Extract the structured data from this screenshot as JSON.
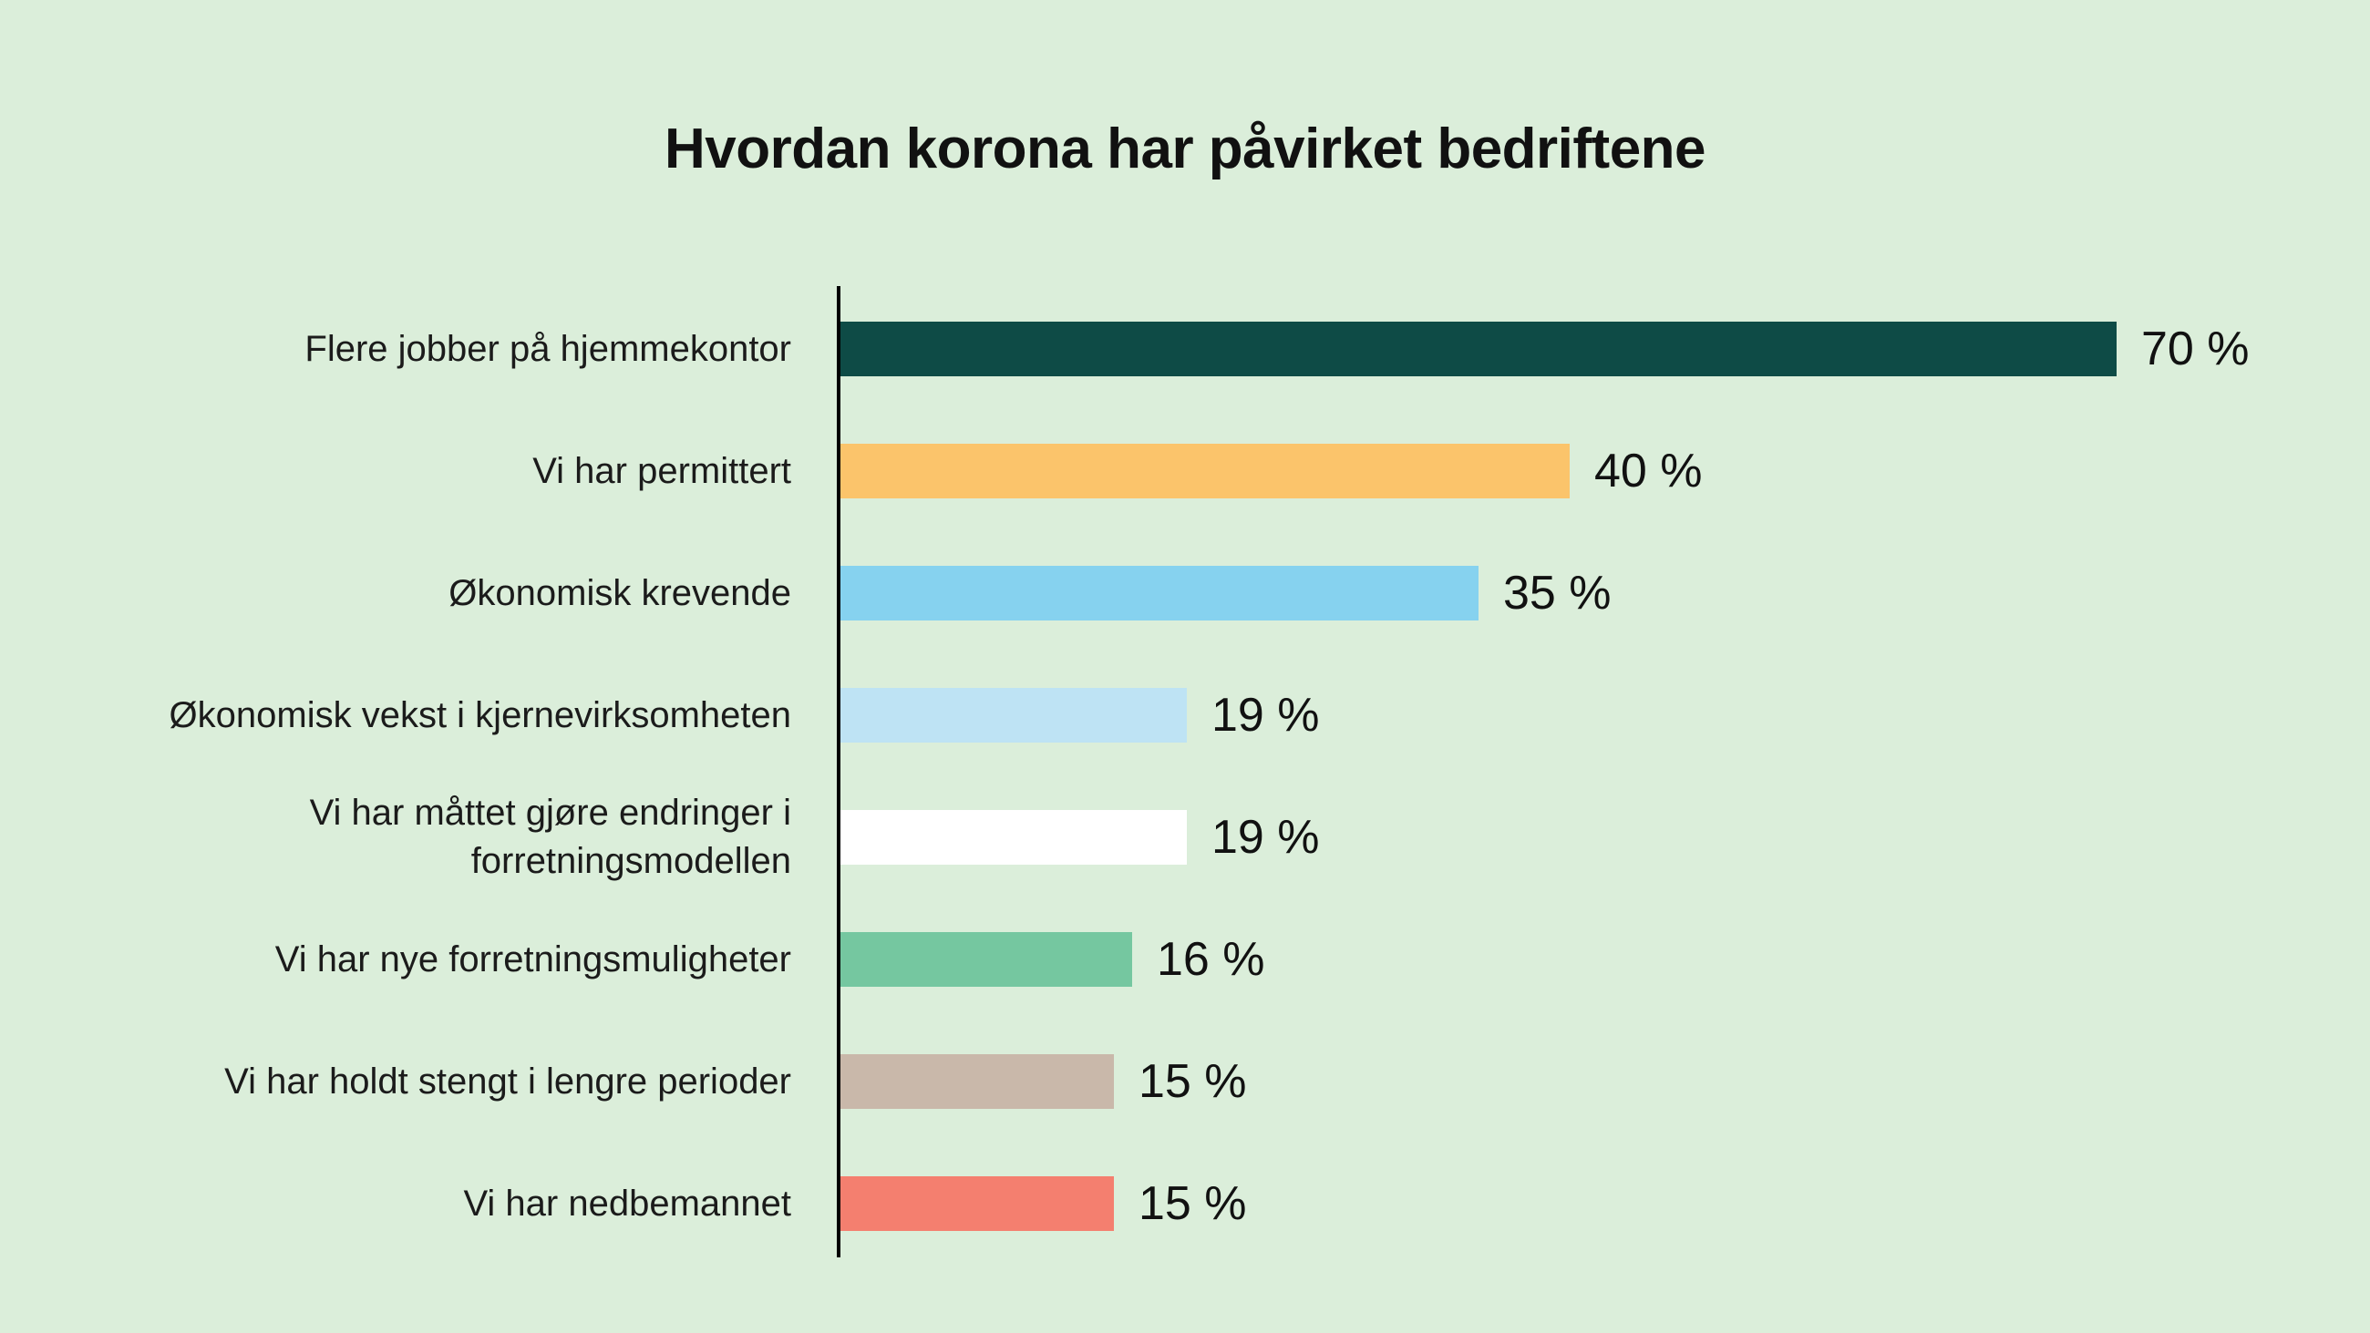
{
  "title": "Hvordan korona har påvirket bedriftene",
  "chart_data": {
    "type": "bar",
    "orientation": "horizontal",
    "title": "Hvordan korona har påvirket bedriftene",
    "categories": [
      "Flere jobber på hjemmekontor",
      "Vi har permittert",
      "Økonomisk krevende",
      "Økonomisk vekst i kjernevirksomheten",
      "Vi har måttet gjøre endringer i forretningsmodellen",
      "Vi har nye forretningsmuligheter",
      "Vi har holdt stengt i lengre perioder",
      "Vi har nedbemannet"
    ],
    "values": [
      70,
      40,
      35,
      19,
      19,
      16,
      15,
      15
    ],
    "value_labels": [
      "70 %",
      "40 %",
      "35 %",
      "19 %",
      "19 %",
      "16 %",
      "15 %",
      "15 %"
    ],
    "unit": "%",
    "bar_colors": [
      "#0e4b46",
      "#fbc46b",
      "#86d2ef",
      "#bee3f4",
      "#ffffff",
      "#75c7a0",
      "#c9b8aa",
      "#f47f6f"
    ],
    "xlim": [
      0,
      72
    ],
    "grid": false,
    "legend": false,
    "background_color": "#dbeeda",
    "axis_color": "#000000",
    "text_color": "#1b1b1b"
  }
}
